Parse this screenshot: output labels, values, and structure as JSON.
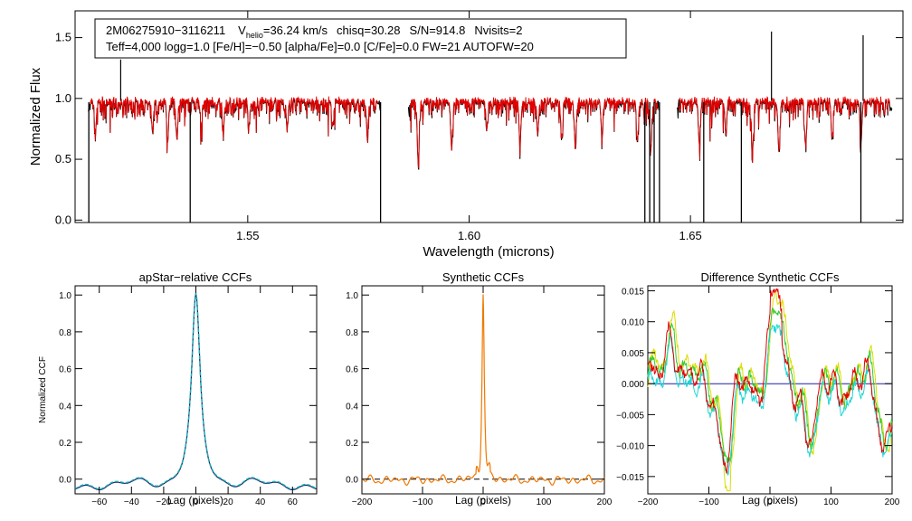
{
  "colors": {
    "observed": "#000000",
    "model": "#e60000",
    "teal": "#12b3b3",
    "navy": "#1a1a66",
    "orange": "#f07800",
    "green": "#33cc33",
    "yellow": "#dddd00",
    "cyan": "#22d6d6",
    "red": "#e60000",
    "blue": "#1f1faa"
  },
  "chart_data": [
    {
      "type": "line",
      "title": "",
      "xlabel": "Wavelength (microns)",
      "ylabel": "Normalized Flux",
      "xlim": [
        1.511,
        1.698
      ],
      "ylim": [
        -0.02,
        1.72
      ],
      "xticks": [
        1.55,
        1.6,
        1.65
      ],
      "xtick_labels": [
        "1.55",
        "1.60",
        "1.65"
      ],
      "yticks": [
        0.0,
        0.5,
        1.0,
        1.5
      ],
      "ytick_labels": [
        "0.0",
        "0.5",
        "1.0",
        "1.5"
      ],
      "annotation": {
        "star": "2M06275910−3116211",
        "vhelio_label_v": "V",
        "vhelio_label_sub": "helio",
        "vhelio_value": "=36.24 km/s",
        "chisq": "chisq=30.28",
        "sn": "S/N=914.8",
        "nvisits": "Nvisits=2",
        "line2": "Teff=4,000 logg=1.0 [Fe/H]=−0.50 [alpha/Fe]=0.0 [C/Fe]=0.0 FW=21 AUTOFW=20"
      },
      "chips": [
        [
          1.514,
          1.58
        ],
        [
          1.5863,
          1.643
        ],
        [
          1.647,
          1.6955
        ]
      ],
      "continuum": 0.97,
      "absorption_lines": [
        {
          "wl": 1.5156,
          "depth": 0.25
        },
        {
          "wl": 1.5285,
          "depth": 0.27
        },
        {
          "wl": 1.5319,
          "depth": 0.33
        },
        {
          "wl": 1.534,
          "depth": 0.3
        },
        {
          "wl": 1.5395,
          "depth": 0.18
        },
        {
          "wl": 1.5445,
          "depth": 0.22
        },
        {
          "wl": 1.5503,
          "depth": 0.19
        },
        {
          "wl": 1.5589,
          "depth": 0.23
        },
        {
          "wl": 1.5692,
          "depth": 0.2
        },
        {
          "wl": 1.577,
          "depth": 0.26
        },
        {
          "wl": 1.5885,
          "depth": 0.5
        },
        {
          "wl": 1.596,
          "depth": 0.3
        },
        {
          "wl": 1.604,
          "depth": 0.23
        },
        {
          "wl": 1.6115,
          "depth": 0.35
        },
        {
          "wl": 1.6155,
          "depth": 0.27
        },
        {
          "wl": 1.6209,
          "depth": 0.3
        },
        {
          "wl": 1.624,
          "depth": 0.33
        },
        {
          "wl": 1.63,
          "depth": 0.3
        },
        {
          "wl": 1.638,
          "depth": 0.35
        },
        {
          "wl": 1.641,
          "depth": 0.42
        },
        {
          "wl": 1.652,
          "depth": 0.33
        },
        {
          "wl": 1.658,
          "depth": 0.28
        },
        {
          "wl": 1.664,
          "depth": 0.44
        },
        {
          "wl": 1.67,
          "depth": 0.42
        },
        {
          "wl": 1.676,
          "depth": 0.35
        },
        {
          "wl": 1.682,
          "depth": 0.31
        },
        {
          "wl": 1.6885,
          "depth": 0.34
        }
      ],
      "bad_pixels": [
        1.5141,
        1.537,
        1.58,
        1.6397,
        1.6408,
        1.6418,
        1.643,
        1.653,
        1.6615,
        1.6885
      ],
      "spikes": [
        {
          "wl": 1.5213,
          "value": 1.32
        },
        {
          "wl": 1.6683,
          "value": 1.55
        },
        {
          "wl": 1.689,
          "value": 1.52
        }
      ]
    },
    {
      "type": "line",
      "title": "apStar−relative CCFs",
      "xlabel": "Lag (pixels)",
      "ylabel": "Normalized CCF",
      "xlim": [
        -75,
        75
      ],
      "ylim": [
        -0.08,
        1.05
      ],
      "xticks": [
        -60,
        -40,
        -20,
        0,
        20,
        40,
        60
      ],
      "xtick_labels": [
        "−60",
        "−40",
        "−20",
        "0",
        "20",
        "40",
        "60"
      ],
      "yticks": [
        0.0,
        0.2,
        0.4,
        0.6,
        0.8,
        1.0
      ],
      "ytick_labels": [
        "0.0",
        "0.2",
        "0.4",
        "0.6",
        "0.8",
        "1.0"
      ],
      "series": [
        {
          "name": "CCF",
          "color_key": "navy",
          "dashed": false
        },
        {
          "name": "fit",
          "color_key": "teal",
          "dashed": true
        }
      ],
      "peak": {
        "lag": 0,
        "value": 0.99
      }
    },
    {
      "type": "line",
      "title": "Synthetic CCFs",
      "xlabel": "Lag (pixels)",
      "ylabel": "",
      "xlim": [
        -200,
        200
      ],
      "ylim": [
        -0.08,
        1.05
      ],
      "xticks": [
        -200,
        -100,
        0,
        100,
        200
      ],
      "xtick_labels": [
        "−200",
        "−100",
        "0",
        "100",
        "200"
      ],
      "yticks": [
        0.0,
        0.2,
        0.4,
        0.6,
        0.8,
        1.0
      ],
      "ytick_labels": [
        "0.0",
        "0.2",
        "0.4",
        "0.6",
        "0.8",
        "1.0"
      ],
      "series": [
        {
          "name": "synthetic CCF",
          "color_key": "orange"
        },
        {
          "name": "zero line",
          "color_key": "observed",
          "dashed": true
        }
      ],
      "peak": {
        "lag": 0,
        "value": 1.0
      }
    },
    {
      "type": "line",
      "title": "Difference Synthetic CCFs",
      "xlabel": "Lag (pixels)",
      "ylabel": "",
      "xlim": [
        -200,
        200
      ],
      "ylim": [
        -0.0178,
        0.0158
      ],
      "xticks": [
        -200,
        -100,
        0,
        100,
        200
      ],
      "xtick_labels": [
        "−200",
        "−100",
        "0",
        "100",
        "200"
      ],
      "yticks": [
        -0.015,
        -0.01,
        -0.005,
        0.0,
        0.005,
        0.01,
        0.015
      ],
      "ytick_labels": [
        "−0.015",
        "−0.010",
        "−0.005",
        "0.000",
        "0.005",
        "0.010",
        "0.015"
      ],
      "series": [
        {
          "name": "yellow",
          "color_key": "yellow"
        },
        {
          "name": "green",
          "color_key": "green"
        },
        {
          "name": "cyan",
          "color_key": "cyan"
        },
        {
          "name": "red",
          "color_key": "red"
        },
        {
          "name": "zero",
          "color_key": "blue"
        }
      ],
      "features": [
        {
          "lag": -160,
          "value": 0.011
        },
        {
          "lag": -70,
          "value": -0.016
        },
        {
          "lag": 10,
          "value": 0.014
        },
        {
          "lag": 70,
          "value": -0.011
        },
        {
          "lag": 190,
          "value": -0.011
        }
      ]
    }
  ]
}
